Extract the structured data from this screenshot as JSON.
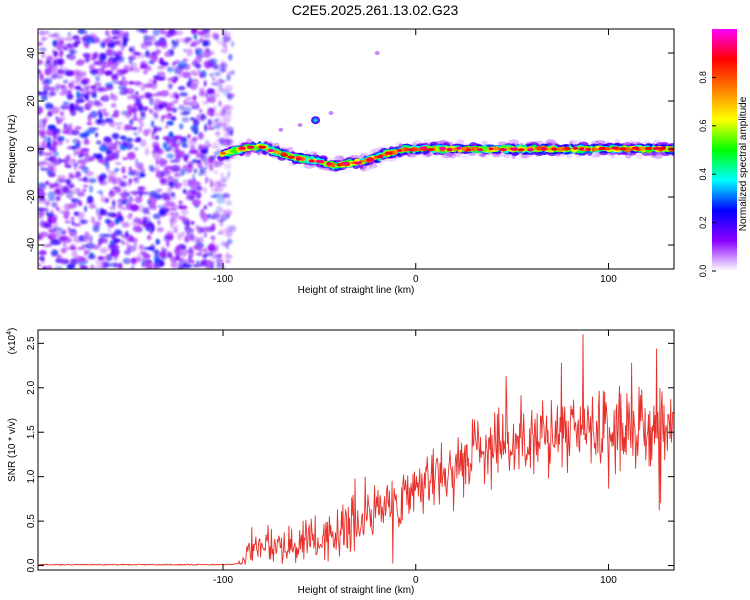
{
  "figure": {
    "title": "C2E5.2025.261.13.02.G23"
  },
  "colors": {
    "snr_line": "#e8302a",
    "frame": "#000000",
    "background": "#ffffff"
  },
  "chart_data": [
    {
      "type": "heatmap",
      "name": "spectrogram",
      "xlabel": "Height of straight line (km)",
      "ylabel": "Frequency (Hz)",
      "xlim": [
        -196,
        134
      ],
      "ylim": [
        -50,
        50
      ],
      "xticks": [
        -100,
        0,
        100
      ],
      "xtick_labels": [
        "-100",
        "0",
        "100"
      ],
      "yticks": [
        -40,
        -20,
        0,
        20,
        40
      ],
      "ytick_labels": [
        "-40",
        "-20",
        "0",
        "20",
        "40"
      ],
      "noise_region_x": [
        -196,
        -98
      ],
      "ridge": {
        "x": [
          -100,
          -90,
          -80,
          -70,
          -60,
          -50,
          -42,
          -35,
          -25,
          -15,
          -5,
          0,
          10,
          20,
          40,
          60,
          80,
          100,
          120,
          134
        ],
        "y": [
          -2,
          0,
          1,
          -2,
          -4,
          -5,
          -7,
          -6,
          -5,
          -2,
          0,
          0,
          0,
          0,
          0,
          0,
          0,
          0,
          0,
          0
        ]
      },
      "harmonic_blobs": [
        {
          "x": -52,
          "y": 12
        },
        {
          "x": -44,
          "y": 15
        },
        {
          "x": -70,
          "y": 8
        },
        {
          "x": -60,
          "y": 10
        },
        {
          "x": -20,
          "y": 40
        }
      ],
      "colorbar": {
        "label": "Normalized spectral amplitude",
        "range": [
          0,
          1
        ],
        "ticks": [
          0.0,
          0.2,
          0.4,
          0.6,
          0.8
        ],
        "tick_labels": [
          "0.0",
          "0.2",
          "0.4",
          "0.6",
          "0.8"
        ],
        "colormap": [
          "#ffffff",
          "#8b00ff",
          "#0000ff",
          "#00ffff",
          "#00ff00",
          "#ffff00",
          "#ff8000",
          "#ff0000",
          "#ff00ff"
        ]
      }
    },
    {
      "type": "line",
      "name": "snr",
      "xlabel": "Height of straight line (km)",
      "ylabel": "SNR (10 * v/v)",
      "scale_label": "(x10",
      "scale_exponent": "4",
      "scale_close": ")",
      "xlim": [
        -196,
        134
      ],
      "ylim": [
        -0.05,
        2.65
      ],
      "xticks": [
        -100,
        0,
        100
      ],
      "xtick_labels": [
        "-100",
        "0",
        "100"
      ],
      "yticks": [
        0.0,
        0.5,
        1.0,
        1.5,
        2.0,
        2.5
      ],
      "ytick_labels": [
        "0.0",
        "0.5",
        "1.0",
        "1.5",
        "2.0",
        "2.5"
      ],
      "series": [
        {
          "name": "SNR",
          "envelope_x": [
            -196,
            -100,
            -90,
            -85,
            -80,
            -70,
            -60,
            -50,
            -40,
            -30,
            -20,
            -10,
            0,
            10,
            20,
            30,
            40,
            50,
            60,
            70,
            80,
            90,
            100,
            110,
            120,
            134
          ],
          "envelope_mean": [
            0.01,
            0.01,
            0.02,
            0.2,
            0.25,
            0.22,
            0.25,
            0.3,
            0.35,
            0.45,
            0.6,
            0.75,
            0.9,
            1.0,
            1.15,
            1.3,
            1.4,
            1.45,
            1.45,
            1.45,
            1.45,
            1.5,
            1.5,
            1.5,
            1.5,
            1.5
          ],
          "envelope_spread": [
            0.01,
            0.01,
            0.02,
            0.15,
            0.2,
            0.2,
            0.22,
            0.25,
            0.25,
            0.28,
            0.3,
            0.3,
            0.32,
            0.3,
            0.3,
            0.35,
            0.38,
            0.4,
            0.42,
            0.45,
            0.45,
            0.45,
            0.45,
            0.45,
            0.45,
            0.45
          ]
        }
      ]
    }
  ]
}
